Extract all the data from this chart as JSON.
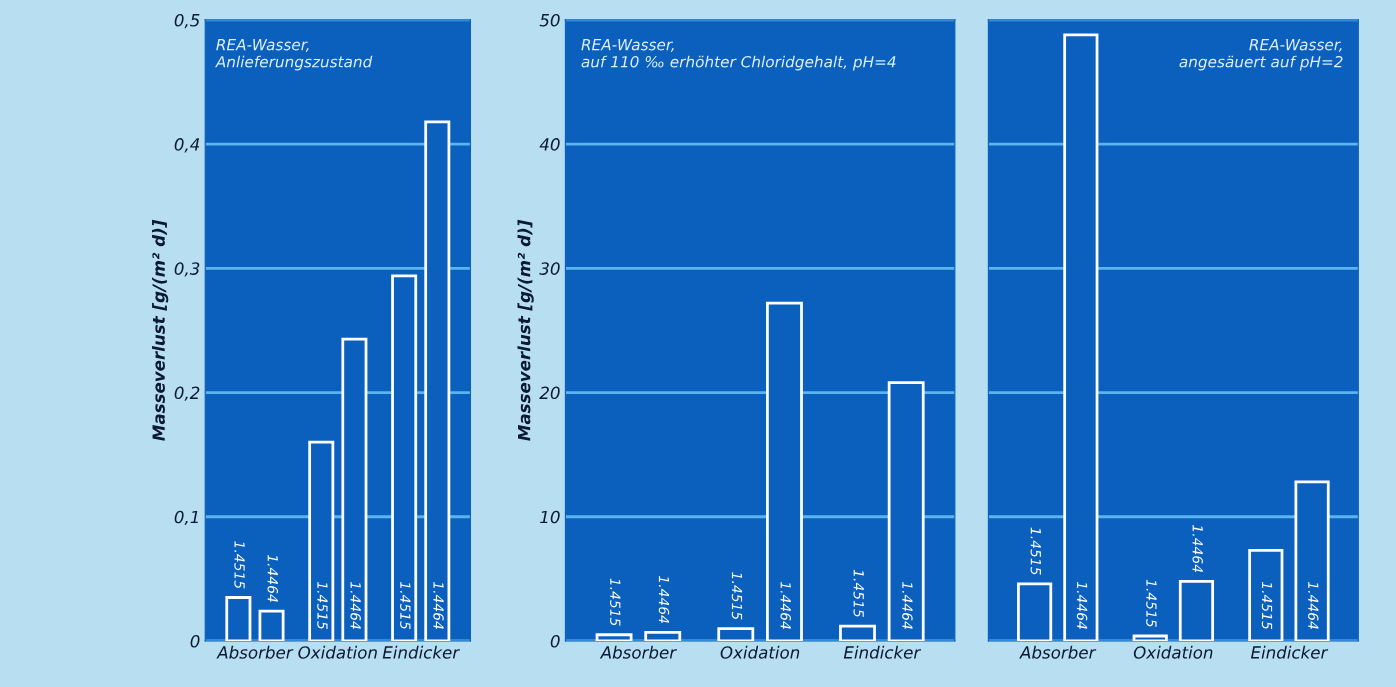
{
  "chart_data": [
    {
      "type": "bar",
      "ylabel": "Masseverlust [g/(m² d)]",
      "categories": [
        "Absorber",
        "Oxidation",
        "Eindicker"
      ],
      "series": [
        {
          "name": "1.4515",
          "color": "#ffffff",
          "values": [
            0.035,
            0.16,
            0.294
          ]
        },
        {
          "name": "1.4464",
          "color": "#ffffff",
          "values": [
            0.024,
            0.243,
            0.418
          ]
        }
      ],
      "ylim": [
        0,
        0.5
      ],
      "yticks": [
        0,
        {
          "value": 0.1,
          "label": "0,1"
        },
        {
          "value": 0.2,
          "label": "0,2"
        },
        {
          "value": 0.3,
          "label": "0,3"
        },
        {
          "value": 0.4,
          "label": "0,4"
        },
        {
          "value": 0.5,
          "label": "0,5"
        }
      ],
      "grid": "y",
      "annotations": [
        "REA-Wasser,\nAnlieferungszustand"
      ]
    },
    {
      "type": "bar",
      "ylabel": "Masseverlust [g/(m² d)]",
      "categories": [
        "Absorber",
        "Oxidation",
        "Eindicker"
      ],
      "series": [
        {
          "name": "1.4515",
          "color": "#ffffff",
          "values": [
            0.5,
            1.0,
            1.2
          ]
        },
        {
          "name": "1.4464",
          "color": "#ffffff",
          "values": [
            0.7,
            27.2,
            20.8
          ]
        }
      ],
      "ylim": [
        0,
        50
      ],
      "yticks": [
        0,
        10,
        20,
        30,
        40,
        50
      ],
      "grid": "y",
      "annotations": [
        "REA-Wasser,\nauf 110 ‰ erhöhter Chloridgehalt, pH=4"
      ]
    },
    {
      "type": "bar",
      "categories": [
        "Absorber",
        "Oxidation",
        "Eindicker"
      ],
      "series": [
        {
          "name": "1.4515",
          "color": "#ffffff",
          "values": [
            4.6,
            0.4,
            7.3
          ]
        },
        {
          "name": "1.4464",
          "color": "#ffffff",
          "values": [
            48.8,
            4.8,
            12.8
          ]
        }
      ],
      "ylim": [
        0,
        50
      ],
      "yticks": [
        0,
        10,
        20,
        30,
        40,
        50
      ],
      "tick_labels": "x",
      "grid": "y",
      "annotations": [
        "REA-Wasser,\nangesäuert auf pH=2"
      ]
    }
  ]
}
